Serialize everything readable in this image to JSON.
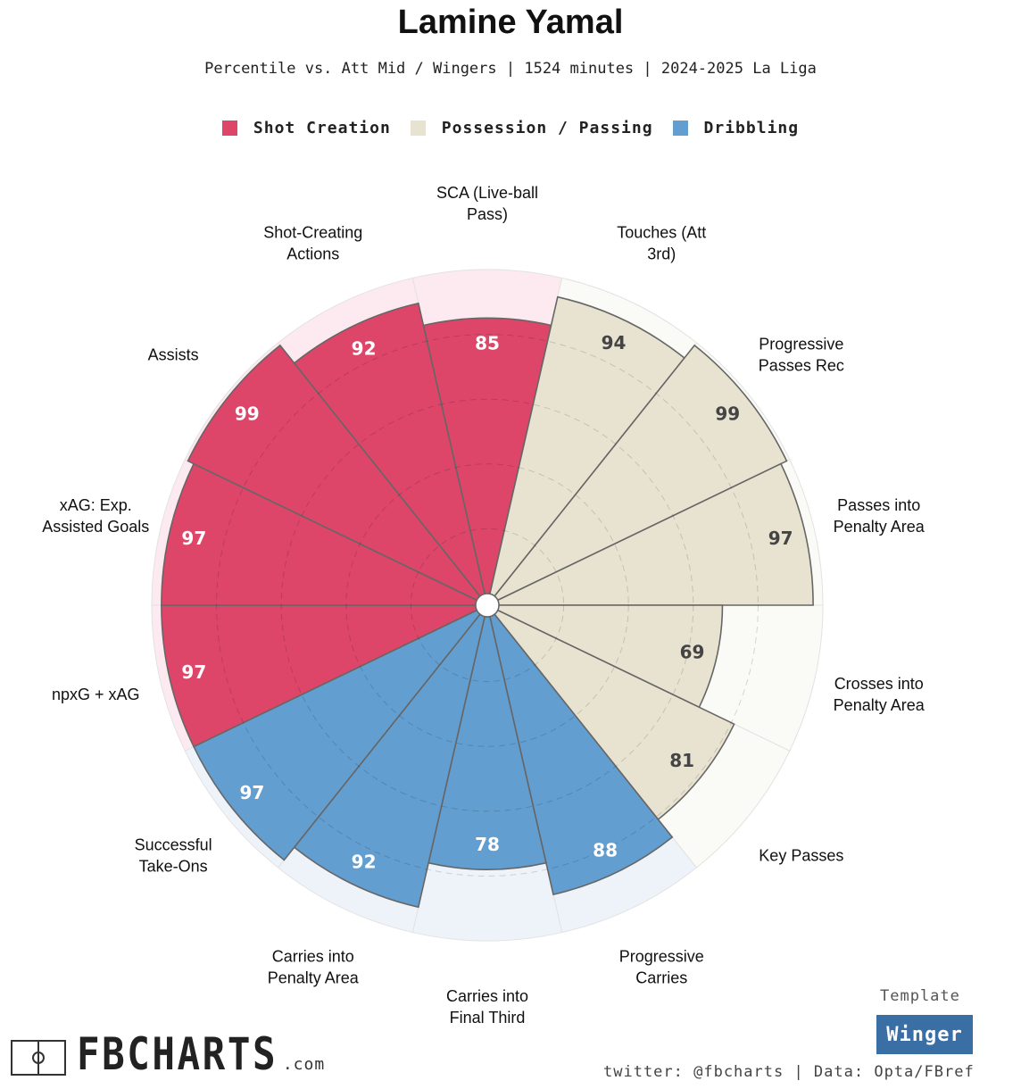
{
  "title": "Lamine Yamal",
  "subtitle": "Percentile vs. Att Mid / Wingers | 1524 minutes | 2024-2025 La Liga",
  "legend": [
    {
      "name": "Shot Creation",
      "color": "#dd4669"
    },
    {
      "name": "Possession / Passing",
      "color": "#e8e2d0"
    },
    {
      "name": "Dribbling",
      "color": "#629ecf"
    }
  ],
  "chart_data": {
    "type": "polar-bar",
    "max": 100,
    "categories": [
      {
        "label": "SCA (Live-ball Pass)",
        "lines": [
          "SCA (Live-ball",
          "Pass)"
        ],
        "value": 85,
        "group": "Shot Creation"
      },
      {
        "label": "Touches (Att 3rd)",
        "lines": [
          "Touches (Att",
          "3rd)"
        ],
        "value": 94,
        "group": "Possession / Passing"
      },
      {
        "label": "Progressive Passes Rec",
        "lines": [
          "Progressive",
          "Passes Rec"
        ],
        "value": 99,
        "group": "Possession / Passing"
      },
      {
        "label": "Passes into Penalty Area",
        "lines": [
          "Passes into",
          "Penalty Area"
        ],
        "value": 97,
        "group": "Possession / Passing"
      },
      {
        "label": "Crosses into Penalty Area",
        "lines": [
          "Crosses into",
          "Penalty Area"
        ],
        "value": 69,
        "group": "Possession / Passing"
      },
      {
        "label": "Key Passes",
        "lines": [
          "Key Passes"
        ],
        "value": 81,
        "group": "Possession / Passing"
      },
      {
        "label": "Progressive Carries",
        "lines": [
          "Progressive",
          "Carries"
        ],
        "value": 88,
        "group": "Dribbling"
      },
      {
        "label": "Carries into Final Third",
        "lines": [
          "Carries into",
          "Final Third"
        ],
        "value": 78,
        "group": "Dribbling"
      },
      {
        "label": "Carries into Penalty Area",
        "lines": [
          "Carries into",
          "Penalty Area"
        ],
        "value": 92,
        "group": "Dribbling"
      },
      {
        "label": "Successful Take-Ons",
        "lines": [
          "Successful",
          "Take-Ons"
        ],
        "value": 97,
        "group": "Dribbling"
      },
      {
        "label": "npxG + xAG",
        "lines": [
          "npxG + xAG"
        ],
        "value": 97,
        "group": "Shot Creation"
      },
      {
        "label": "xAG: Exp. Assisted Goals",
        "lines": [
          "xAG: Exp.",
          "Assisted Goals"
        ],
        "value": 97,
        "group": "Shot Creation"
      },
      {
        "label": "Assists",
        "lines": [
          "Assists"
        ],
        "value": 99,
        "group": "Shot Creation"
      },
      {
        "label": "Shot-Creating Actions",
        "lines": [
          "Shot-Creating",
          "Actions"
        ],
        "value": 92,
        "group": "Shot Creation"
      }
    ]
  },
  "footer": {
    "template_label": "Template",
    "template_value": "Winger",
    "credits": "twitter: @fbcharts | Data: Opta/FBref",
    "logo_text": "FBCHARTS",
    "logo_suffix": ".com"
  }
}
